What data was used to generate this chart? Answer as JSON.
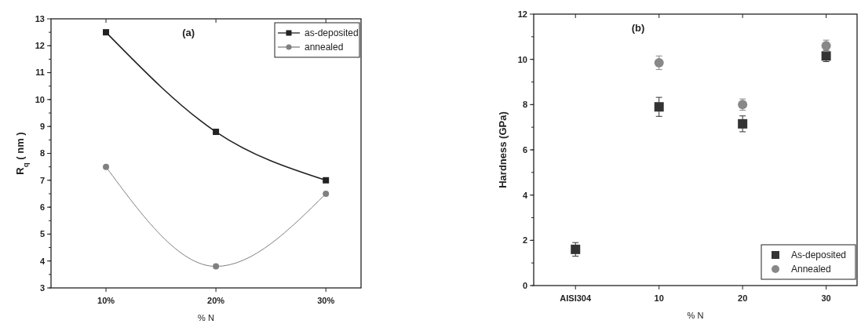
{
  "chart_data": [
    {
      "type": "line",
      "title": "(a)",
      "xlabel": "% N",
      "ylabel": "R$_{q}$ ( nm )",
      "categories": [
        "10%",
        "20%",
        "30%"
      ],
      "ylim": [
        3,
        13
      ],
      "yticks": [
        3,
        4,
        5,
        6,
        7,
        8,
        9,
        10,
        11,
        12,
        13
      ],
      "legend": "top right",
      "series": [
        {
          "name": "as-deposited",
          "color": "#222222",
          "values": [
            12.5,
            8.8,
            7.0
          ],
          "marker": "square"
        },
        {
          "name": "annealed",
          "color": "#808080",
          "values": [
            7.5,
            3.8,
            6.5
          ],
          "marker": "circle"
        }
      ]
    },
    {
      "type": "scatter",
      "title": "(b)",
      "xlabel": "% N",
      "ylabel": "Hardness (GPa)",
      "categories": [
        "AISI304",
        "10",
        "20",
        "30"
      ],
      "ylim": [
        0,
        12
      ],
      "yticks": [
        0,
        2,
        4,
        6,
        8,
        10,
        12
      ],
      "legend": "bottom right",
      "series": [
        {
          "name": "As-deposited",
          "color": "#333333",
          "values": [
            1.6,
            7.9,
            7.15,
            10.15
          ],
          "errors": [
            0.3,
            0.42,
            0.35,
            0.25
          ],
          "marker": "square"
        },
        {
          "name": "Annealed",
          "color": "#888888",
          "values": [
            null,
            9.85,
            8.0,
            10.6
          ],
          "errors": [
            null,
            0.3,
            0.25,
            0.25
          ],
          "marker": "circle"
        }
      ]
    }
  ]
}
